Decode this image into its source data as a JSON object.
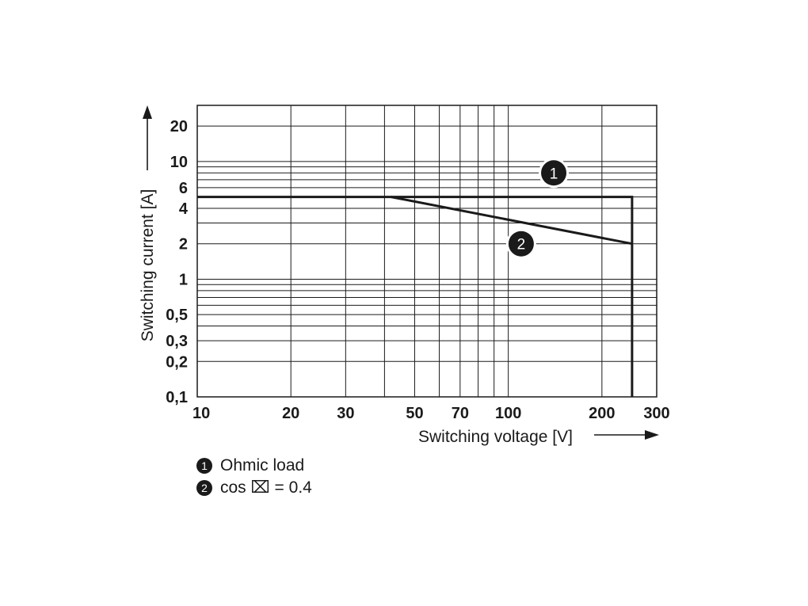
{
  "chart_data": {
    "type": "line",
    "x_scale": "log",
    "y_scale": "log",
    "xlim": [
      10,
      300
    ],
    "ylim": [
      0.1,
      30
    ],
    "xlabel": "Switching voltage [V]",
    "ylabel": "Switching current [A]",
    "x_ticks": [
      {
        "value": 10,
        "label": "10"
      },
      {
        "value": 20,
        "label": "20"
      },
      {
        "value": 30,
        "label": "30"
      },
      {
        "value": 50,
        "label": "50"
      },
      {
        "value": 70,
        "label": "70"
      },
      {
        "value": 100,
        "label": "100"
      },
      {
        "value": 200,
        "label": "200"
      },
      {
        "value": 300,
        "label": "300"
      }
    ],
    "y_ticks": [
      {
        "value": 0.1,
        "label": "0,1"
      },
      {
        "value": 0.2,
        "label": "0,2"
      },
      {
        "value": 0.3,
        "label": "0,3"
      },
      {
        "value": 0.5,
        "label": "0,5"
      },
      {
        "value": 1,
        "label": "1"
      },
      {
        "value": 2,
        "label": "2"
      },
      {
        "value": 4,
        "label": "4"
      },
      {
        "value": 6,
        "label": "6"
      },
      {
        "value": 10,
        "label": "10"
      },
      {
        "value": 20,
        "label": "20"
      }
    ],
    "x_gridlines": [
      10,
      20,
      30,
      40,
      50,
      60,
      70,
      80,
      90,
      100,
      200,
      300
    ],
    "y_gridlines": [
      0.1,
      0.2,
      0.3,
      0.4,
      0.5,
      0.6,
      0.7,
      0.8,
      0.9,
      1,
      2,
      3,
      4,
      5,
      6,
      7,
      8,
      9,
      10,
      20
    ],
    "grid": true,
    "series": [
      {
        "marker": "1",
        "name": "Ohmic load",
        "x": [
          10,
          250,
          250
        ],
        "y": [
          5,
          5,
          0.1
        ]
      },
      {
        "marker": "2",
        "name": "cos ⌧ = 0.4",
        "x": [
          42,
          250
        ],
        "y": [
          5,
          2
        ]
      }
    ],
    "annotations": [
      {
        "marker": "1",
        "x": 140,
        "y": 8
      },
      {
        "marker": "2",
        "x": 110,
        "y": 2
      }
    ]
  },
  "legend": {
    "items": [
      {
        "marker": "1",
        "label": "Ohmic load"
      },
      {
        "marker": "2",
        "label": "cos ⌧ = 0.4"
      }
    ]
  },
  "colors": {
    "line": "#1a1a1a",
    "grid": "#1a1a1a",
    "background": "#ffffff"
  }
}
